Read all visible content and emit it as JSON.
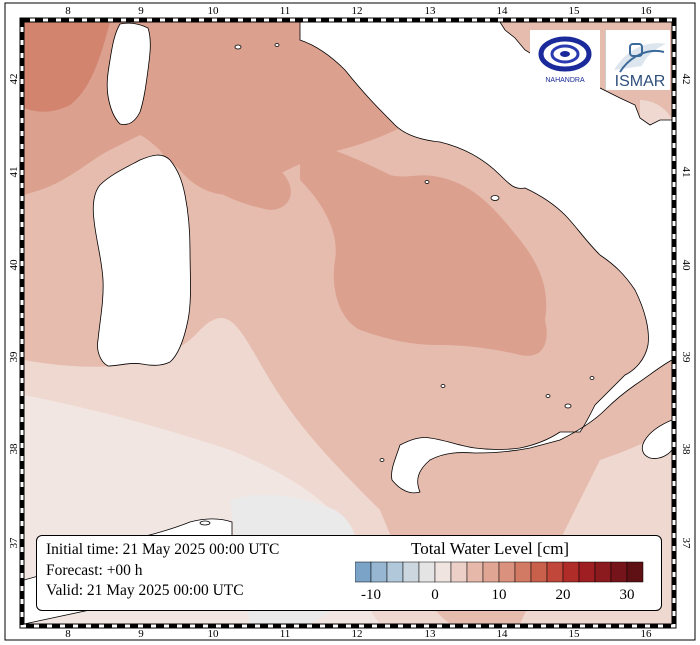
{
  "map": {
    "lon_ticks": [
      "8",
      "9",
      "10",
      "11",
      "12",
      "13",
      "14",
      "15",
      "16"
    ],
    "lat_ticks": [
      "42",
      "41",
      "40",
      "39",
      "38",
      "37"
    ],
    "colors": {
      "land": "#ffffff",
      "coast": "#000000",
      "sea_dark": "#d2846f",
      "sea_mid": "#dca08f",
      "sea_light": "#e6bcae",
      "sea_pale": "#efd8d0",
      "sea_paler": "#f2e6e2",
      "sea_near_zero": "#eaeaea"
    }
  },
  "info": {
    "initial_time": "Initial time: 21 May 2025 00:00 UTC",
    "forecast": "Forecast: +00 h",
    "valid": "Valid: 21 May 2025 00:00 UTC"
  },
  "legend": {
    "title": "Total Water Level [cm]",
    "tick_labels": [
      "-10",
      "0",
      "10",
      "20",
      "30"
    ],
    "colors": [
      "#7ba3c8",
      "#96b6d2",
      "#b1c7da",
      "#cbd6df",
      "#e4e4e4",
      "#f0e4e0",
      "#ecd0c8",
      "#e5b8aa",
      "#e0a593",
      "#da917d",
      "#d37a64",
      "#c9604b",
      "#c0473a",
      "#b02c28",
      "#9e1e22",
      "#8b1a1e",
      "#75151b",
      "#5e1014"
    ]
  },
  "logos": {
    "left_icon": "nahandra-ring-icon",
    "left_text": "NAHANDRA",
    "right_text": "ISMAR"
  }
}
